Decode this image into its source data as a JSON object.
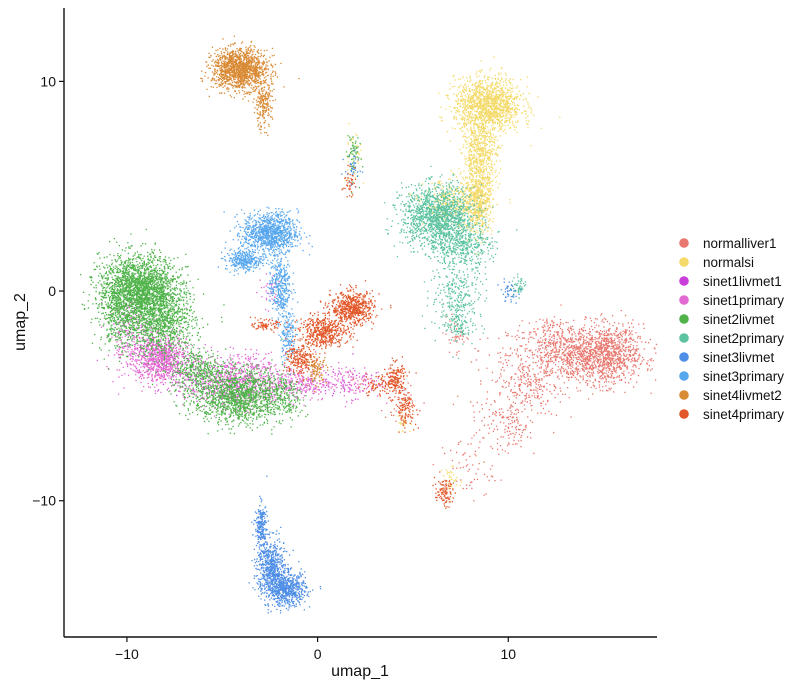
{
  "chart_data": {
    "type": "scatter",
    "title": "",
    "xlabel": "umap_1",
    "ylabel": "umap_2",
    "xlim": [
      -13.3,
      17.8
    ],
    "ylim": [
      -16.5,
      13.5
    ],
    "x_ticks": [
      -10,
      0,
      10
    ],
    "y_ticks": [
      -10,
      0,
      10
    ],
    "x_tick_labels": [
      "−10",
      "0",
      "10"
    ],
    "y_tick_labels": [
      "−10",
      "0",
      "10"
    ],
    "grid": false,
    "legend_position": "right",
    "series": [
      {
        "name": "normalliver1",
        "color": "#E8786F",
        "clusters": [
          {
            "cx": 13.5,
            "cy": -3.0,
            "sx": 2.2,
            "sy": 0.9,
            "n": 1100
          },
          {
            "cx": 15.2,
            "cy": -3.0,
            "sx": 1.0,
            "sy": 0.9,
            "n": 600
          },
          {
            "cx": 11.0,
            "cy": -4.6,
            "sx": 1.0,
            "sy": 0.8,
            "n": 150
          },
          {
            "cx": 9.5,
            "cy": -5.8,
            "sx": 1.3,
            "sy": 1.4,
            "n": 120
          },
          {
            "cx": 10.3,
            "cy": -6.5,
            "sx": 0.4,
            "sy": 0.5,
            "n": 60
          },
          {
            "cx": 7.8,
            "cy": -8.5,
            "sx": 0.9,
            "sy": 1.0,
            "n": 60
          },
          {
            "cx": 7.2,
            "cy": -2.0,
            "sx": 0.4,
            "sy": 0.5,
            "n": 40
          },
          {
            "cx": 4.2,
            "cy": -5.0,
            "sx": 0.6,
            "sy": 0.9,
            "n": 40
          },
          {
            "cx": 12.0,
            "cy": -1.7,
            "sx": 0.5,
            "sy": 0.4,
            "n": 40
          }
        ]
      },
      {
        "name": "normalsi",
        "color": "#F4DA6A",
        "clusters": [
          {
            "cx": 8.9,
            "cy": 8.9,
            "sx": 1.1,
            "sy": 0.8,
            "n": 1300
          },
          {
            "cx": 8.5,
            "cy": 6.5,
            "sx": 0.55,
            "sy": 1.2,
            "n": 600
          },
          {
            "cx": 8.4,
            "cy": 4.2,
            "sx": 0.45,
            "sy": 0.9,
            "n": 450
          },
          {
            "cx": 7.2,
            "cy": 4.2,
            "sx": 1.0,
            "sy": 0.7,
            "n": 350
          },
          {
            "cx": 1.8,
            "cy": 6.5,
            "sx": 0.3,
            "sy": 0.8,
            "n": 40
          },
          {
            "cx": 7.0,
            "cy": -8.9,
            "sx": 0.3,
            "sy": 0.3,
            "n": 30
          },
          {
            "cx": 4.5,
            "cy": -6.3,
            "sx": 0.3,
            "sy": 0.3,
            "n": 20
          }
        ]
      },
      {
        "name": "sinet1livmet1",
        "color": "#C93FD9",
        "clusters": [
          {
            "cx": -6.5,
            "cy": -4.0,
            "sx": 1.2,
            "sy": 0.7,
            "n": 80
          },
          {
            "cx": 1.5,
            "cy": -4.2,
            "sx": 1.0,
            "sy": 0.6,
            "n": 40
          }
        ]
      },
      {
        "name": "sinet1primary",
        "color": "#E369D2",
        "clusters": [
          {
            "cx": -8.3,
            "cy": -3.2,
            "sx": 0.9,
            "sy": 0.7,
            "n": 900
          },
          {
            "cx": -4.3,
            "cy": -4.3,
            "sx": 1.6,
            "sy": 0.8,
            "n": 800
          },
          {
            "cx": -1.0,
            "cy": -4.4,
            "sx": 1.1,
            "sy": 0.5,
            "n": 250
          },
          {
            "cx": -9.8,
            "cy": -2.0,
            "sx": 0.8,
            "sy": 1.2,
            "n": 250
          },
          {
            "cx": 1.6,
            "cy": -4.3,
            "sx": 1.1,
            "sy": 0.5,
            "n": 150
          },
          {
            "cx": -2.5,
            "cy": 0.0,
            "sx": 0.4,
            "sy": 0.5,
            "n": 40
          }
        ]
      },
      {
        "name": "sinet2livmet",
        "color": "#4FB34A",
        "clusters": [
          {
            "cx": -9.4,
            "cy": 0.1,
            "sx": 1.3,
            "sy": 1.0,
            "n": 2200
          },
          {
            "cx": -8.2,
            "cy": -1.5,
            "sx": 1.1,
            "sy": 1.0,
            "n": 900
          },
          {
            "cx": -4.2,
            "cy": -5.0,
            "sx": 1.5,
            "sy": 0.8,
            "n": 1400
          },
          {
            "cx": -6.3,
            "cy": -3.7,
            "sx": 0.9,
            "sy": 0.6,
            "n": 350
          },
          {
            "cx": -10.5,
            "cy": -1.5,
            "sx": 0.6,
            "sy": 0.9,
            "n": 250
          },
          {
            "cx": 1.8,
            "cy": 6.6,
            "sx": 0.2,
            "sy": 0.8,
            "n": 60
          },
          {
            "cx": -1.8,
            "cy": -5.0,
            "sx": 0.6,
            "sy": 0.7,
            "n": 150
          }
        ]
      },
      {
        "name": "sinet2primary",
        "color": "#5CC3A0",
        "clusters": [
          {
            "cx": 6.3,
            "cy": 3.6,
            "sx": 1.2,
            "sy": 0.9,
            "n": 1400
          },
          {
            "cx": 7.5,
            "cy": 2.2,
            "sx": 1.0,
            "sy": 0.6,
            "n": 400
          },
          {
            "cx": 7.3,
            "cy": -0.2,
            "sx": 0.9,
            "sy": 1.1,
            "n": 300
          },
          {
            "cx": 7.4,
            "cy": -1.6,
            "sx": 0.4,
            "sy": 0.4,
            "n": 80
          },
          {
            "cx": 10.5,
            "cy": 0.2,
            "sx": 0.3,
            "sy": 0.3,
            "n": 50
          }
        ]
      },
      {
        "name": "sinet3livmet",
        "color": "#4E8EE6",
        "clusters": [
          {
            "cx": -1.6,
            "cy": -14.2,
            "sx": 0.6,
            "sy": 0.5,
            "n": 600
          },
          {
            "cx": -2.5,
            "cy": -13.2,
            "sx": 0.45,
            "sy": 0.9,
            "n": 600
          },
          {
            "cx": -3.0,
            "cy": -11.2,
            "sx": 0.2,
            "sy": 0.7,
            "n": 200
          },
          {
            "cx": 1.8,
            "cy": 5.8,
            "sx": 0.25,
            "sy": 0.6,
            "n": 40
          },
          {
            "cx": 10.0,
            "cy": 0.0,
            "sx": 0.3,
            "sy": 0.3,
            "n": 40
          }
        ]
      },
      {
        "name": "sinet3primary",
        "color": "#57A7EE",
        "clusters": [
          {
            "cx": -2.5,
            "cy": 2.8,
            "sx": 0.9,
            "sy": 0.6,
            "n": 1000
          },
          {
            "cx": -3.9,
            "cy": 1.5,
            "sx": 0.6,
            "sy": 0.3,
            "n": 300
          },
          {
            "cx": -2.0,
            "cy": 0.3,
            "sx": 0.35,
            "sy": 1.0,
            "n": 350
          },
          {
            "cx": -1.6,
            "cy": -2.0,
            "sx": 0.25,
            "sy": 0.8,
            "n": 150
          }
        ]
      },
      {
        "name": "sinet4livmet2",
        "color": "#D98A35",
        "clusters": [
          {
            "cx": -4.1,
            "cy": 10.6,
            "sx": 0.9,
            "sy": 0.6,
            "n": 1400
          },
          {
            "cx": -2.9,
            "cy": 8.9,
            "sx": 0.3,
            "sy": 0.7,
            "n": 200
          },
          {
            "cx": -0.1,
            "cy": -3.7,
            "sx": 0.35,
            "sy": 0.4,
            "n": 100
          }
        ]
      },
      {
        "name": "sinet4primary",
        "color": "#E2582A",
        "clusters": [
          {
            "cx": 1.8,
            "cy": -0.8,
            "sx": 0.7,
            "sy": 0.5,
            "n": 600
          },
          {
            "cx": 0.3,
            "cy": -1.9,
            "sx": 0.8,
            "sy": 0.45,
            "n": 500
          },
          {
            "cx": -1.0,
            "cy": -3.2,
            "sx": 0.45,
            "sy": 0.5,
            "n": 200
          },
          {
            "cx": -2.8,
            "cy": -1.6,
            "sx": 0.4,
            "sy": 0.15,
            "n": 80
          },
          {
            "cx": 4.0,
            "cy": -4.2,
            "sx": 0.35,
            "sy": 0.5,
            "n": 180
          },
          {
            "cx": 4.6,
            "cy": -5.6,
            "sx": 0.35,
            "sy": 0.5,
            "n": 120
          },
          {
            "cx": 3.0,
            "cy": -4.5,
            "sx": 0.6,
            "sy": 0.3,
            "n": 60
          },
          {
            "cx": 6.6,
            "cy": -9.6,
            "sx": 0.3,
            "sy": 0.4,
            "n": 100
          },
          {
            "cx": 1.6,
            "cy": 5.2,
            "sx": 0.2,
            "sy": 0.4,
            "n": 40
          }
        ]
      }
    ]
  }
}
